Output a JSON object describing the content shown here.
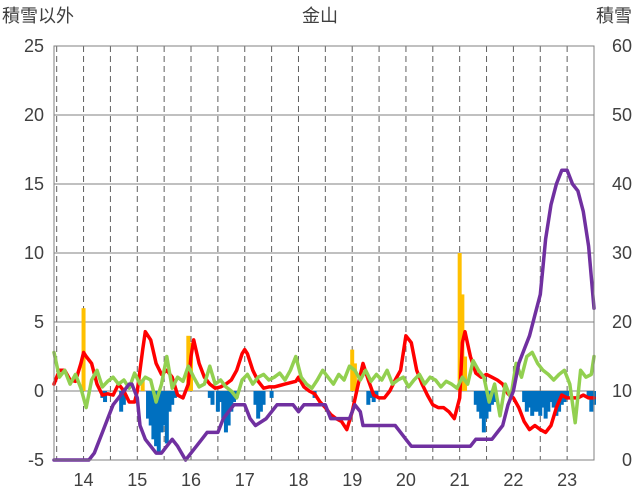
{
  "chart_data": {
    "type": "line+bar",
    "title": "金山",
    "left_axis_title": "積雪以外",
    "right_axis_title": "積雪",
    "x_tick_labels": [
      "14",
      "15",
      "16",
      "17",
      "18",
      "19",
      "20",
      "21",
      "22",
      "23"
    ],
    "x_tick_positions": [
      14,
      15,
      16,
      17,
      18,
      19,
      20,
      21,
      22,
      23
    ],
    "xlim": [
      13.45,
      23.5
    ],
    "left_ylim": [
      -5,
      25
    ],
    "left_ticks": [
      -5,
      0,
      5,
      10,
      15,
      20,
      25
    ],
    "right_ylim": [
      0,
      60
    ],
    "right_ticks": [
      0,
      10,
      20,
      30,
      40,
      50,
      60
    ],
    "grid": {
      "vertical_dashed": true,
      "horizontal": true
    },
    "series": [
      {
        "axis": "left",
        "style": "line",
        "color": "#ff0000",
        "x": [
          13.45,
          13.55,
          13.65,
          13.75,
          13.85,
          13.95,
          14.0,
          14.05,
          14.15,
          14.25,
          14.35,
          14.45,
          14.55,
          14.65,
          14.75,
          14.85,
          14.95,
          15.0,
          15.05,
          15.1,
          15.15,
          15.25,
          15.35,
          15.45,
          15.55,
          15.65,
          15.75,
          15.85,
          15.95,
          16.0,
          16.05,
          16.15,
          16.25,
          16.35,
          16.45,
          16.55,
          16.65,
          16.75,
          16.85,
          16.95,
          17.0,
          17.05,
          17.15,
          17.25,
          17.35,
          17.45,
          17.55,
          17.65,
          17.75,
          17.85,
          17.95,
          18.0,
          18.1,
          18.2,
          18.3,
          18.4,
          18.5,
          18.6,
          18.7,
          18.8,
          18.9,
          19.0,
          19.1,
          19.2,
          19.3,
          19.4,
          19.5,
          19.6,
          19.7,
          19.8,
          19.9,
          20.0,
          20.1,
          20.2,
          20.3,
          20.4,
          20.5,
          20.6,
          20.7,
          20.8,
          20.9,
          21.0,
          21.05,
          21.1,
          21.2,
          21.3,
          21.4,
          21.5,
          21.6,
          21.7,
          21.8,
          21.9,
          22.0,
          22.1,
          22.2,
          22.3,
          22.4,
          22.5,
          22.6,
          22.7,
          22.8,
          22.9,
          23.0,
          23.1,
          23.2,
          23.3,
          23.4,
          23.5
        ],
        "y": [
          0.5,
          1.5,
          1.5,
          0.8,
          0.7,
          2.0,
          2.8,
          2.5,
          2.0,
          0.5,
          -0.3,
          -0.2,
          -0.3,
          0.5,
          0.0,
          -0.8,
          -0.8,
          0.0,
          1.5,
          3.0,
          4.3,
          3.7,
          2.0,
          1.2,
          1.5,
          1.0,
          -0.3,
          -0.5,
          0.5,
          2.5,
          3.7,
          2.0,
          1.0,
          0.5,
          0.2,
          0.3,
          0.5,
          0.8,
          1.5,
          2.7,
          3.0,
          2.7,
          1.5,
          0.7,
          0.2,
          0.3,
          0.3,
          0.4,
          0.5,
          0.6,
          0.7,
          1.0,
          0.3,
          0.0,
          -0.2,
          -0.8,
          -1.2,
          -1.7,
          -2.0,
          -2.2,
          -2.8,
          -1.5,
          0.3,
          2.0,
          0.8,
          -0.3,
          -0.5,
          -0.5,
          0.0,
          0.8,
          1.5,
          4.0,
          3.5,
          1.5,
          0.5,
          -0.3,
          -1.0,
          -1.2,
          -1.2,
          -1.5,
          -2.0,
          -0.5,
          3.5,
          4.3,
          2.5,
          1.3,
          1.0,
          1.2,
          1.0,
          0.8,
          0.5,
          -0.2,
          -0.5,
          -1.2,
          -2.2,
          -2.8,
          -2.5,
          -2.8,
          -3.0,
          -2.5,
          -1.2,
          -0.3,
          -0.5,
          -0.5,
          -0.5,
          -0.3,
          -0.5,
          -0.5
        ]
      },
      {
        "axis": "left",
        "style": "line",
        "color": "#92d050",
        "x": [
          13.45,
          13.55,
          13.65,
          13.75,
          13.85,
          13.95,
          14.05,
          14.15,
          14.25,
          14.35,
          14.45,
          14.55,
          14.65,
          14.75,
          14.85,
          14.95,
          15.05,
          15.15,
          15.25,
          15.35,
          15.45,
          15.55,
          15.65,
          15.75,
          15.85,
          15.95,
          16.05,
          16.15,
          16.25,
          16.35,
          16.45,
          16.55,
          16.65,
          16.75,
          16.85,
          16.95,
          17.05,
          17.15,
          17.25,
          17.35,
          17.45,
          17.55,
          17.65,
          17.75,
          17.85,
          17.95,
          18.05,
          18.15,
          18.25,
          18.35,
          18.45,
          18.55,
          18.65,
          18.75,
          18.85,
          18.95,
          19.05,
          19.15,
          19.25,
          19.35,
          19.45,
          19.55,
          19.65,
          19.75,
          19.85,
          19.95,
          20.05,
          20.15,
          20.25,
          20.35,
          20.45,
          20.55,
          20.65,
          20.75,
          20.85,
          20.95,
          21.05,
          21.15,
          21.25,
          21.35,
          21.45,
          21.55,
          21.65,
          21.75,
          21.85,
          21.95,
          22.05,
          22.15,
          22.25,
          22.35,
          22.45,
          22.55,
          22.65,
          22.75,
          22.85,
          22.95,
          23.05,
          23.15,
          23.25,
          23.35,
          23.45,
          23.5
        ],
        "y": [
          2.8,
          1.0,
          1.5,
          0.5,
          1.2,
          0.2,
          -1.2,
          0.8,
          1.5,
          0.3,
          0.7,
          1.0,
          0.5,
          0.8,
          0.2,
          1.3,
          0.5,
          1.0,
          0.8,
          -0.8,
          0.5,
          2.5,
          0.2,
          1.0,
          0.7,
          1.8,
          1.0,
          0.3,
          0.5,
          1.8,
          0.5,
          0.8,
          0.3,
          0.0,
          -0.5,
          0.8,
          1.2,
          0.5,
          1.0,
          1.2,
          0.8,
          1.0,
          1.3,
          0.8,
          1.5,
          2.5,
          1.0,
          0.5,
          0.2,
          0.8,
          1.5,
          1.0,
          0.5,
          1.2,
          0.8,
          1.8,
          1.5,
          0.8,
          1.5,
          0.7,
          1.2,
          0.8,
          1.5,
          0.5,
          0.8,
          1.0,
          0.3,
          0.8,
          1.2,
          0.5,
          1.0,
          0.8,
          0.3,
          0.7,
          0.5,
          0.2,
          1.0,
          0.5,
          2.2,
          1.5,
          1.0,
          -0.8,
          0.5,
          -1.8,
          0.5,
          -0.5,
          2.0,
          1.0,
          2.5,
          2.8,
          2.0,
          1.5,
          1.2,
          0.8,
          1.2,
          1.5,
          0.5,
          -2.3,
          1.5,
          1.0,
          1.2,
          2.5
        ]
      },
      {
        "axis": "right",
        "style": "line",
        "color": "#7030a0",
        "x": [
          13.45,
          14.0,
          14.1,
          14.2,
          14.25,
          14.35,
          14.45,
          14.55,
          14.65,
          14.75,
          14.85,
          14.9,
          15.0,
          15.05,
          15.15,
          15.25,
          15.35,
          15.45,
          15.55,
          15.65,
          15.75,
          15.9,
          16.0,
          16.1,
          16.2,
          16.3,
          16.5,
          16.6,
          16.7,
          16.8,
          16.9,
          17.0,
          17.05,
          17.1,
          17.2,
          17.4,
          17.5,
          17.6,
          17.7,
          17.8,
          17.9,
          18.0,
          18.1,
          18.4,
          18.5,
          18.6,
          18.8,
          18.95,
          19.0,
          19.05,
          19.15,
          19.2,
          19.5,
          19.8,
          19.9,
          20.0,
          20.1,
          20.4,
          20.5,
          20.8,
          21.0,
          21.2,
          21.3,
          21.6,
          21.8,
          21.9,
          22.0,
          22.1,
          22.2,
          22.3,
          22.4,
          22.5,
          22.55,
          22.6,
          22.7,
          22.8,
          22.9,
          23.0,
          23.1,
          23.2,
          23.3,
          23.4,
          23.5
        ],
        "y": [
          0,
          0,
          0,
          1,
          2,
          4,
          6,
          8,
          9,
          10,
          11,
          11,
          9,
          5,
          3,
          2,
          1,
          1,
          2,
          3,
          2,
          0,
          1,
          2,
          3,
          4,
          4,
          6,
          7,
          8,
          8,
          8,
          7,
          6,
          5,
          6,
          7,
          8,
          8,
          8,
          8,
          7,
          8,
          8,
          8,
          6,
          6,
          6,
          7,
          8,
          7,
          5,
          5,
          5,
          4,
          3,
          2,
          2,
          2,
          2,
          2,
          2,
          3,
          3,
          5,
          8,
          10,
          14,
          16,
          18,
          21,
          24,
          28,
          32,
          37,
          40,
          42,
          42,
          40,
          39,
          36,
          31,
          22
        ]
      },
      {
        "axis": "left",
        "style": "bars",
        "color": "#ffc000",
        "x": [
          14.0,
          15.1,
          15.95,
          16.0,
          19.0,
          19.05,
          21.0,
          21.05,
          21.1
        ],
        "y": [
          6.0,
          0.8,
          4.0,
          3.5,
          3.0,
          2.0,
          10.0,
          7.0,
          2.5
        ]
      },
      {
        "axis": "left",
        "style": "bars",
        "color": "#0070c0",
        "x": [
          14.35,
          14.4,
          14.7,
          14.75,
          15.2,
          15.25,
          15.3,
          15.35,
          15.4,
          15.45,
          15.5,
          15.55,
          15.6,
          15.65,
          15.7,
          16.35,
          16.4,
          16.5,
          16.55,
          16.6,
          16.65,
          16.7,
          16.75,
          16.8,
          16.85,
          17.2,
          17.25,
          17.3,
          17.35,
          17.5,
          18.3,
          19.3,
          19.35,
          19.4,
          19.45,
          21.3,
          21.35,
          21.4,
          21.45,
          21.5,
          21.55,
          21.6,
          21.65,
          22.2,
          22.25,
          22.3,
          22.35,
          22.4,
          22.45,
          22.5,
          22.55,
          22.6,
          22.65,
          22.7,
          22.75,
          22.8,
          22.85,
          22.9,
          22.95,
          23.0,
          23.4,
          23.45,
          23.5
        ],
        "y": [
          -0.5,
          -0.8,
          -1.5,
          -1.0,
          -2.0,
          -2.5,
          -3.5,
          -4.0,
          -4.5,
          -3.0,
          -2.5,
          -3.8,
          -1.5,
          -1.0,
          -0.5,
          -0.5,
          -1.0,
          -1.5,
          -0.8,
          -2.0,
          -3.0,
          -2.5,
          -1.5,
          -0.8,
          -0.5,
          -1.0,
          -2.0,
          -1.5,
          -1.0,
          -0.5,
          -0.5,
          -1.0,
          -0.5,
          -0.8,
          -0.5,
          -1.0,
          -1.5,
          -2.0,
          -3.0,
          -2.0,
          -1.5,
          -1.0,
          -0.8,
          -0.8,
          -1.5,
          -1.2,
          -1.8,
          -1.5,
          -1.5,
          -1.8,
          -1.2,
          -2.0,
          -1.5,
          -0.8,
          -1.2,
          -1.8,
          -1.5,
          -1.0,
          -0.8,
          -0.5,
          -0.5,
          -1.5,
          -1.0
        ]
      }
    ]
  }
}
